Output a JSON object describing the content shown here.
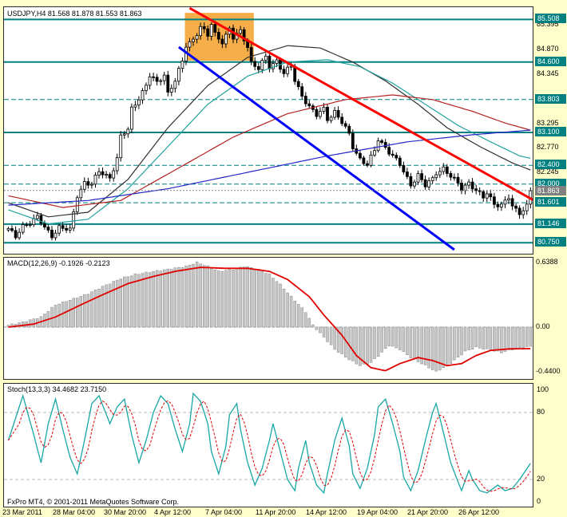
{
  "meta": {
    "platform_footer": "FxPro MT4, © 2001-2011 MetaQuotes Software Corp."
  },
  "colors": {
    "page_bg": "#FFFFCC",
    "panel_bg": "#FFFFFF",
    "panel_border": "#2b2b2b",
    "level_teal": "#008080",
    "current_grey": "#808080",
    "macd_hist_fill": "#C6C6C6",
    "macd_hist_stroke": "#8C8C8C",
    "macd_signal": "#E00000",
    "stoch_main": "#18A6A6",
    "stoch_signal": "#E00000"
  },
  "time_axis": [
    "23 Mar 2011",
    "28 Mar 04:00",
    "30 Mar 20:00",
    "4 Apr 12:00",
    "7 Apr 04:00",
    "11 Apr 20:00",
    "14 Apr 12:00",
    "19 Apr 04:00",
    "21 Apr 20:00",
    "26 Apr 12:00"
  ],
  "chart_data": [
    {
      "type": "candlestick",
      "symbol": "USDJPY",
      "timeframe": "H4",
      "title_full": "USDJPY,H4 81.568 81.878 81.553 81.863",
      "last_ohlc": {
        "open": 81.568,
        "high": 81.878,
        "low": 81.553,
        "close": 81.863
      },
      "bars_total": 145,
      "y_range": [
        80.6,
        85.6
      ],
      "close_keypoints": [
        [
          0,
          81.05
        ],
        [
          2,
          80.85
        ],
        [
          4,
          81.1
        ],
        [
          8,
          81.3
        ],
        [
          10,
          81.05
        ],
        [
          12,
          80.9
        ],
        [
          14,
          81.1
        ],
        [
          17,
          81.0
        ],
        [
          19,
          81.75
        ],
        [
          21,
          82.05
        ],
        [
          23,
          82.0
        ],
        [
          25,
          82.25
        ],
        [
          28,
          82.15
        ],
        [
          30,
          82.55
        ],
        [
          31,
          83.0
        ],
        [
          33,
          83.15
        ],
        [
          34,
          83.6
        ],
        [
          36,
          83.85
        ],
        [
          38,
          84.1
        ],
        [
          39,
          84.3
        ],
        [
          41,
          84.15
        ],
        [
          43,
          84.35
        ],
        [
          44,
          83.95
        ],
        [
          46,
          84.2
        ],
        [
          48,
          84.6
        ],
        [
          49,
          84.95
        ],
        [
          51,
          85.1
        ],
        [
          53,
          85.35
        ],
        [
          55,
          85.15
        ],
        [
          56,
          85.4
        ],
        [
          57,
          85.2
        ],
        [
          59,
          85.05
        ],
        [
          61,
          85.3
        ],
        [
          62,
          85.1
        ],
        [
          64,
          85.25
        ],
        [
          66,
          84.95
        ],
        [
          67,
          84.6
        ],
        [
          69,
          84.45
        ],
        [
          71,
          84.7
        ],
        [
          72,
          84.5
        ],
        [
          74,
          84.65
        ],
        [
          76,
          84.35
        ],
        [
          78,
          84.5
        ],
        [
          79,
          84.2
        ],
        [
          81,
          83.9
        ],
        [
          83,
          83.65
        ],
        [
          85,
          83.45
        ],
        [
          87,
          83.6
        ],
        [
          88,
          83.4
        ],
        [
          90,
          83.55
        ],
        [
          92,
          83.3
        ],
        [
          94,
          83.05
        ],
        [
          95,
          82.8
        ],
        [
          97,
          82.55
        ],
        [
          99,
          82.4
        ],
        [
          101,
          82.7
        ],
        [
          102,
          82.95
        ],
        [
          104,
          82.8
        ],
        [
          106,
          82.6
        ],
        [
          108,
          82.4
        ],
        [
          109,
          82.25
        ],
        [
          111,
          82.0
        ],
        [
          113,
          82.2
        ],
        [
          115,
          81.95
        ],
        [
          117,
          82.1
        ],
        [
          118,
          82.25
        ],
        [
          120,
          82.35
        ],
        [
          122,
          82.15
        ],
        [
          124,
          82.0
        ],
        [
          125,
          81.9
        ],
        [
          127,
          82.05
        ],
        [
          129,
          81.85
        ],
        [
          131,
          81.7
        ],
        [
          132,
          81.8
        ],
        [
          134,
          81.6
        ],
        [
          136,
          81.55
        ],
        [
          138,
          81.7
        ],
        [
          139,
          81.5
        ],
        [
          141,
          81.4
        ],
        [
          143,
          81.55
        ],
        [
          144,
          81.863
        ]
      ],
      "support_resistance": {
        "solid": [
          85.508,
          84.6,
          83.1,
          81.146,
          80.75
        ],
        "dashed": [
          83.803,
          82.4,
          82.0,
          81.601
        ]
      },
      "current_price": 81.863,
      "y_axis_boxed": [
        "85.508",
        "84.600",
        "83.803",
        "83.100",
        "82.400",
        "82.000",
        "81.601",
        "81.146",
        "80.750"
      ],
      "y_axis_plain": [
        "85.395",
        "84.870",
        "84.345",
        "83.295",
        "82.770",
        "82.245"
      ],
      "trendlines": [
        {
          "name": "descending-trendline-red",
          "color": "#FF0000",
          "from": [
            50,
            85.75
          ],
          "to": [
            145,
            81.65
          ],
          "width": 3
        },
        {
          "name": "descending-trendline-blue",
          "color": "#0000FF",
          "from": [
            47,
            84.92
          ],
          "to": [
            123,
            80.6
          ],
          "width": 3
        }
      ],
      "highlight_box": {
        "bars": [
          49,
          68
        ],
        "prices": [
          84.63,
          85.65
        ],
        "color": "#F6AE4A"
      },
      "moving_averages": [
        {
          "name": "ma-long-black",
          "color": "#303030",
          "keypoints": [
            [
              0,
              81.6
            ],
            [
              11,
              81.3
            ],
            [
              22,
              81.4
            ],
            [
              33,
              82.1
            ],
            [
              44,
              83.2
            ],
            [
              55,
              84.1
            ],
            [
              66,
              84.7
            ],
            [
              77,
              84.95
            ],
            [
              86,
              84.9
            ],
            [
              95,
              84.6
            ],
            [
              104,
              84.2
            ],
            [
              113,
              83.7
            ],
            [
              121,
              83.2
            ],
            [
              130,
              82.8
            ],
            [
              139,
              82.45
            ],
            [
              144,
              82.3
            ]
          ]
        },
        {
          "name": "ma-mid-teal",
          "color": "#1FA39B",
          "keypoints": [
            [
              0,
              81.45
            ],
            [
              11,
              81.15
            ],
            [
              22,
              81.25
            ],
            [
              33,
              81.9
            ],
            [
              44,
              82.8
            ],
            [
              55,
              83.7
            ],
            [
              66,
              84.3
            ],
            [
              77,
              84.6
            ],
            [
              88,
              84.65
            ],
            [
              97,
              84.5
            ],
            [
              106,
              84.15
            ],
            [
              115,
              83.7
            ],
            [
              124,
              83.25
            ],
            [
              133,
              82.9
            ],
            [
              141,
              82.6
            ],
            [
              144,
              82.55
            ]
          ]
        },
        {
          "name": "ma-slow-darkred",
          "color": "#B22222",
          "keypoints": [
            [
              0,
              81.75
            ],
            [
              15,
              81.5
            ],
            [
              31,
              81.65
            ],
            [
              46,
              82.3
            ],
            [
              62,
              83.0
            ],
            [
              77,
              83.5
            ],
            [
              93,
              83.8
            ],
            [
              106,
              83.9
            ],
            [
              117,
              83.8
            ],
            [
              128,
              83.55
            ],
            [
              137,
              83.3
            ],
            [
              144,
              83.15
            ]
          ]
        },
        {
          "name": "ma-verylong-blue",
          "color": "#2626C9",
          "keypoints": [
            [
              0,
              81.55
            ],
            [
              22,
              81.65
            ],
            [
              44,
              81.9
            ],
            [
              66,
              82.25
            ],
            [
              88,
              82.6
            ],
            [
              110,
              82.9
            ],
            [
              128,
              83.05
            ],
            [
              144,
              83.15
            ]
          ]
        }
      ]
    },
    {
      "type": "macd",
      "label": "MACD(12,26,9) -0.1926 -0.2123",
      "params": "12,26,9",
      "values": {
        "macd": -0.1926,
        "signal": -0.2123
      },
      "axis_labels": [
        "0.6388",
        "0.00",
        "-0.4400"
      ],
      "ylim": [
        -0.5,
        0.67
      ],
      "hist_keypoints": [
        [
          0,
          0.02
        ],
        [
          4,
          0.05
        ],
        [
          9,
          0.1
        ],
        [
          13,
          0.22
        ],
        [
          18,
          0.28
        ],
        [
          22,
          0.33
        ],
        [
          26,
          0.4
        ],
        [
          31,
          0.48
        ],
        [
          35,
          0.52
        ],
        [
          40,
          0.55
        ],
        [
          44,
          0.57
        ],
        [
          49,
          0.6
        ],
        [
          52,
          0.6388
        ],
        [
          55,
          0.6
        ],
        [
          58,
          0.55
        ],
        [
          62,
          0.57
        ],
        [
          65,
          0.6
        ],
        [
          68,
          0.58
        ],
        [
          72,
          0.52
        ],
        [
          75,
          0.42
        ],
        [
          78,
          0.3
        ],
        [
          82,
          0.15
        ],
        [
          84,
          0.02
        ],
        [
          87,
          -0.1
        ],
        [
          90,
          -0.22
        ],
        [
          94,
          -0.32
        ],
        [
          97,
          -0.38
        ],
        [
          100,
          -0.35
        ],
        [
          103,
          -0.25
        ],
        [
          105,
          -0.18
        ],
        [
          108,
          -0.22
        ],
        [
          111,
          -0.3
        ],
        [
          115,
          -0.38
        ],
        [
          118,
          -0.44
        ],
        [
          121,
          -0.38
        ],
        [
          124,
          -0.3
        ],
        [
          126,
          -0.24
        ],
        [
          129,
          -0.2
        ],
        [
          132,
          -0.22
        ],
        [
          136,
          -0.25
        ],
        [
          139,
          -0.22
        ],
        [
          142,
          -0.2
        ],
        [
          144,
          -0.1926
        ]
      ],
      "signal_keypoints": [
        [
          0,
          0.0
        ],
        [
          7,
          0.03
        ],
        [
          13,
          0.1
        ],
        [
          20,
          0.22
        ],
        [
          26,
          0.32
        ],
        [
          33,
          0.43
        ],
        [
          40,
          0.5
        ],
        [
          46,
          0.55
        ],
        [
          53,
          0.59
        ],
        [
          60,
          0.58
        ],
        [
          66,
          0.58
        ],
        [
          72,
          0.55
        ],
        [
          77,
          0.47
        ],
        [
          83,
          0.3
        ],
        [
          87,
          0.12
        ],
        [
          92,
          -0.08
        ],
        [
          96,
          -0.28
        ],
        [
          100,
          -0.4
        ],
        [
          104,
          -0.43
        ],
        [
          108,
          -0.36
        ],
        [
          113,
          -0.3
        ],
        [
          117,
          -0.33
        ],
        [
          121,
          -0.38
        ],
        [
          125,
          -0.36
        ],
        [
          129,
          -0.28
        ],
        [
          133,
          -0.23
        ],
        [
          138,
          -0.215
        ],
        [
          144,
          -0.2123
        ]
      ]
    },
    {
      "type": "stochastic",
      "label": "Stoch(13,3,3) 34.4682 23.7150",
      "params": "13,3,3",
      "values": {
        "main": 34.4682,
        "signal": 23.715
      },
      "axis_labels": [
        "100",
        "80",
        "20",
        "0"
      ],
      "levels": [
        80,
        20
      ],
      "main_keypoints": [
        [
          0,
          55
        ],
        [
          2,
          75
        ],
        [
          4,
          95
        ],
        [
          7,
          60
        ],
        [
          9,
          35
        ],
        [
          11,
          70
        ],
        [
          13,
          92
        ],
        [
          15,
          65
        ],
        [
          17,
          40
        ],
        [
          19,
          25
        ],
        [
          21,
          55
        ],
        [
          23,
          88
        ],
        [
          25,
          95
        ],
        [
          28,
          70
        ],
        [
          30,
          85
        ],
        [
          32,
          92
        ],
        [
          34,
          60
        ],
        [
          36,
          35
        ],
        [
          38,
          55
        ],
        [
          40,
          80
        ],
        [
          42,
          95
        ],
        [
          44,
          88
        ],
        [
          46,
          65
        ],
        [
          48,
          45
        ],
        [
          50,
          70
        ],
        [
          51,
          97
        ],
        [
          53,
          90
        ],
        [
          55,
          70
        ],
        [
          56,
          45
        ],
        [
          58,
          25
        ],
        [
          60,
          50
        ],
        [
          61,
          78
        ],
        [
          63,
          88
        ],
        [
          64,
          65
        ],
        [
          66,
          35
        ],
        [
          68,
          15
        ],
        [
          70,
          30
        ],
        [
          72,
          55
        ],
        [
          73,
          70
        ],
        [
          75,
          45
        ],
        [
          77,
          20
        ],
        [
          79,
          10
        ],
        [
          80,
          30
        ],
        [
          82,
          55
        ],
        [
          83,
          35
        ],
        [
          85,
          15
        ],
        [
          87,
          8
        ],
        [
          88,
          25
        ],
        [
          90,
          55
        ],
        [
          92,
          75
        ],
        [
          94,
          50
        ],
        [
          95,
          25
        ],
        [
          97,
          12
        ],
        [
          99,
          30
        ],
        [
          101,
          60
        ],
        [
          102,
          85
        ],
        [
          104,
          92
        ],
        [
          106,
          70
        ],
        [
          108,
          45
        ],
        [
          109,
          22
        ],
        [
          111,
          10
        ],
        [
          113,
          28
        ],
        [
          115,
          55
        ],
        [
          117,
          80
        ],
        [
          118,
          88
        ],
        [
          120,
          62
        ],
        [
          122,
          35
        ],
        [
          124,
          18
        ],
        [
          125,
          10
        ],
        [
          127,
          28
        ],
        [
          128,
          20
        ],
        [
          130,
          10
        ],
        [
          132,
          8
        ],
        [
          135,
          15
        ],
        [
          137,
          10
        ],
        [
          139,
          12
        ],
        [
          141,
          20
        ],
        [
          144,
          34.4682
        ]
      ]
    }
  ]
}
